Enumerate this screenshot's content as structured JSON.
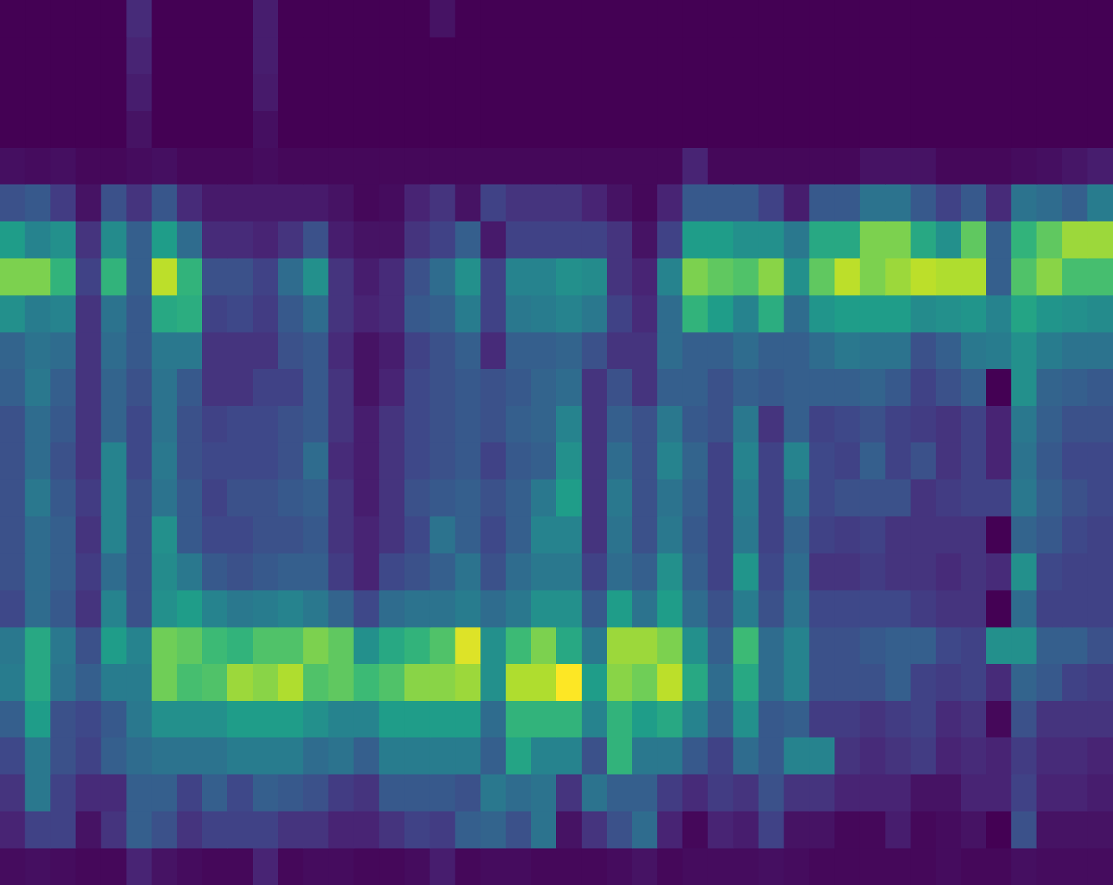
{
  "chart_data": {
    "type": "heatmap",
    "color": "viridis",
    "tick_labels": false,
    "grid": false,
    "color_range": [
      0,
      1
    ],
    "cells": [
      [
        0,
        0,
        0,
        0,
        0,
        0.12,
        0,
        0,
        0,
        0,
        0.08,
        0,
        0,
        0,
        0,
        0,
        0,
        0.05,
        0,
        0,
        0,
        0,
        0,
        0,
        0,
        0,
        0,
        0,
        0,
        0,
        0,
        0,
        0,
        0,
        0,
        0,
        0,
        0,
        0,
        0,
        0,
        0,
        0,
        0
      ],
      [
        0,
        0,
        0,
        0,
        0,
        0.1,
        0,
        0,
        0,
        0,
        0.08,
        0,
        0,
        0,
        0,
        0,
        0,
        0,
        0,
        0,
        0,
        0,
        0,
        0,
        0,
        0,
        0,
        0,
        0,
        0,
        0,
        0,
        0,
        0,
        0,
        0,
        0,
        0,
        0,
        0,
        0,
        0,
        0,
        0
      ],
      [
        0,
        0,
        0,
        0,
        0,
        0.08,
        0,
        0,
        0,
        0,
        0.07,
        0,
        0,
        0,
        0,
        0,
        0,
        0,
        0,
        0,
        0,
        0,
        0,
        0,
        0,
        0,
        0,
        0,
        0,
        0,
        0,
        0,
        0,
        0,
        0,
        0,
        0,
        0,
        0,
        0,
        0,
        0,
        0,
        0
      ],
      [
        0,
        0,
        0,
        0,
        0,
        0.05,
        0,
        0,
        0,
        0,
        0.04,
        0,
        0,
        0,
        0,
        0,
        0,
        0,
        0,
        0,
        0,
        0,
        0,
        0,
        0,
        0,
        0,
        0,
        0,
        0,
        0,
        0,
        0,
        0,
        0,
        0,
        0,
        0,
        0,
        0,
        0,
        0,
        0,
        0
      ],
      [
        0.04,
        0.03,
        0.04,
        0.02,
        0.02,
        0.03,
        0.04,
        0.02,
        0.02,
        0.02,
        0.03,
        0.02,
        0.02,
        0.02,
        0.02,
        0.02,
        0.02,
        0.02,
        0.02,
        0.02,
        0.02,
        0.02,
        0.02,
        0.02,
        0.02,
        0.02,
        0.02,
        0.1,
        0.02,
        0.02,
        0.02,
        0.02,
        0.02,
        0.02,
        0.05,
        0.05,
        0.05,
        0.02,
        0.02,
        0.02,
        0.03,
        0.04,
        0.06,
        0.08
      ],
      [
        0.25,
        0.28,
        0.18,
        0.05,
        0.25,
        0.15,
        0.27,
        0.12,
        0.07,
        0.07,
        0.07,
        0.07,
        0.07,
        0.05,
        0.02,
        0.03,
        0.1,
        0.15,
        0.05,
        0.2,
        0.15,
        0.15,
        0.15,
        0.1,
        0.05,
        0.02,
        0.1,
        0.28,
        0.28,
        0.28,
        0.2,
        0.08,
        0.28,
        0.28,
        0.38,
        0.38,
        0.28,
        0.2,
        0.28,
        0.12,
        0.38,
        0.35,
        0.3,
        0.42
      ],
      [
        0.55,
        0.45,
        0.5,
        0.15,
        0.48,
        0.3,
        0.55,
        0.35,
        0.12,
        0.12,
        0.1,
        0.15,
        0.25,
        0.08,
        0.05,
        0.05,
        0.15,
        0.2,
        0.3,
        0.07,
        0.2,
        0.2,
        0.2,
        0.2,
        0.15,
        0.05,
        0.2,
        0.55,
        0.55,
        0.5,
        0.5,
        0.4,
        0.6,
        0.6,
        0.8,
        0.8,
        0.6,
        0.5,
        0.75,
        0.3,
        0.65,
        0.75,
        0.85,
        0.85
      ],
      [
        0.8,
        0.8,
        0.65,
        0.2,
        0.65,
        0.3,
        0.9,
        0.65,
        0.25,
        0.25,
        0.2,
        0.35,
        0.5,
        0.15,
        0.08,
        0.12,
        0.25,
        0.35,
        0.5,
        0.2,
        0.45,
        0.45,
        0.5,
        0.48,
        0.15,
        0.1,
        0.45,
        0.8,
        0.75,
        0.72,
        0.82,
        0.5,
        0.75,
        0.9,
        0.8,
        0.85,
        0.9,
        0.88,
        0.88,
        0.3,
        0.72,
        0.82,
        0.7,
        0.7
      ],
      [
        0.5,
        0.42,
        0.45,
        0.15,
        0.38,
        0.28,
        0.6,
        0.62,
        0.2,
        0.22,
        0.18,
        0.28,
        0.35,
        0.15,
        0.1,
        0.12,
        0.28,
        0.3,
        0.42,
        0.2,
        0.4,
        0.42,
        0.45,
        0.4,
        0.2,
        0.12,
        0.35,
        0.65,
        0.55,
        0.45,
        0.62,
        0.35,
        0.52,
        0.55,
        0.55,
        0.55,
        0.48,
        0.5,
        0.52,
        0.45,
        0.58,
        0.52,
        0.5,
        0.48
      ],
      [
        0.32,
        0.38,
        0.35,
        0.15,
        0.35,
        0.28,
        0.4,
        0.4,
        0.15,
        0.15,
        0.15,
        0.25,
        0.28,
        0.12,
        0.05,
        0.08,
        0.2,
        0.25,
        0.3,
        0.12,
        0.3,
        0.3,
        0.32,
        0.25,
        0.15,
        0.15,
        0.35,
        0.3,
        0.3,
        0.35,
        0.3,
        0.3,
        0.35,
        0.4,
        0.38,
        0.38,
        0.25,
        0.3,
        0.4,
        0.42,
        0.5,
        0.42,
        0.38,
        0.38
      ],
      [
        0.3,
        0.4,
        0.3,
        0.15,
        0.32,
        0.25,
        0.38,
        0.28,
        0.15,
        0.15,
        0.2,
        0.2,
        0.28,
        0.15,
        0.05,
        0.1,
        0.22,
        0.25,
        0.28,
        0.25,
        0.28,
        0.32,
        0.35,
        0.15,
        0.25,
        0.15,
        0.3,
        0.3,
        0.25,
        0.3,
        0.28,
        0.3,
        0.3,
        0.3,
        0.32,
        0.28,
        0.2,
        0.25,
        0.3,
        0.0,
        0.5,
        0.32,
        0.3,
        0.28
      ],
      [
        0.25,
        0.35,
        0.28,
        0.15,
        0.32,
        0.22,
        0.38,
        0.25,
        0.2,
        0.22,
        0.22,
        0.25,
        0.28,
        0.15,
        0.08,
        0.15,
        0.22,
        0.25,
        0.28,
        0.25,
        0.3,
        0.32,
        0.45,
        0.15,
        0.3,
        0.25,
        0.4,
        0.28,
        0.25,
        0.4,
        0.15,
        0.3,
        0.2,
        0.22,
        0.25,
        0.2,
        0.18,
        0.15,
        0.2,
        0.1,
        0.4,
        0.3,
        0.25,
        0.25
      ],
      [
        0.25,
        0.35,
        0.25,
        0.15,
        0.45,
        0.22,
        0.4,
        0.25,
        0.22,
        0.22,
        0.22,
        0.25,
        0.35,
        0.12,
        0.08,
        0.15,
        0.22,
        0.25,
        0.28,
        0.2,
        0.28,
        0.3,
        0.5,
        0.15,
        0.35,
        0.25,
        0.45,
        0.32,
        0.2,
        0.45,
        0.2,
        0.45,
        0.22,
        0.2,
        0.3,
        0.2,
        0.25,
        0.15,
        0.2,
        0.1,
        0.38,
        0.28,
        0.22,
        0.22
      ],
      [
        0.25,
        0.4,
        0.28,
        0.18,
        0.45,
        0.25,
        0.38,
        0.28,
        0.2,
        0.25,
        0.25,
        0.28,
        0.3,
        0.15,
        0.08,
        0.15,
        0.25,
        0.28,
        0.3,
        0.25,
        0.3,
        0.4,
        0.55,
        0.15,
        0.4,
        0.25,
        0.38,
        0.3,
        0.2,
        0.42,
        0.2,
        0.38,
        0.22,
        0.25,
        0.25,
        0.25,
        0.15,
        0.18,
        0.2,
        0.2,
        0.4,
        0.3,
        0.25,
        0.22
      ],
      [
        0.25,
        0.35,
        0.3,
        0.15,
        0.45,
        0.25,
        0.5,
        0.28,
        0.22,
        0.22,
        0.25,
        0.25,
        0.28,
        0.15,
        0.1,
        0.15,
        0.22,
        0.38,
        0.3,
        0.22,
        0.3,
        0.45,
        0.45,
        0.15,
        0.38,
        0.25,
        0.4,
        0.28,
        0.2,
        0.4,
        0.2,
        0.32,
        0.2,
        0.18,
        0.2,
        0.15,
        0.15,
        0.15,
        0.15,
        0.0,
        0.32,
        0.28,
        0.22,
        0.2
      ],
      [
        0.25,
        0.35,
        0.3,
        0.18,
        0.35,
        0.25,
        0.48,
        0.4,
        0.28,
        0.25,
        0.28,
        0.3,
        0.3,
        0.18,
        0.1,
        0.22,
        0.25,
        0.3,
        0.38,
        0.25,
        0.35,
        0.4,
        0.4,
        0.2,
        0.35,
        0.3,
        0.5,
        0.3,
        0.2,
        0.52,
        0.22,
        0.35,
        0.15,
        0.15,
        0.18,
        0.15,
        0.15,
        0.12,
        0.15,
        0.12,
        0.5,
        0.22,
        0.2,
        0.2
      ],
      [
        0.22,
        0.35,
        0.28,
        0.15,
        0.45,
        0.25,
        0.5,
        0.55,
        0.45,
        0.4,
        0.42,
        0.45,
        0.4,
        0.32,
        0.22,
        0.35,
        0.38,
        0.38,
        0.42,
        0.35,
        0.4,
        0.5,
        0.5,
        0.28,
        0.55,
        0.38,
        0.55,
        0.35,
        0.25,
        0.42,
        0.25,
        0.38,
        0.22,
        0.22,
        0.22,
        0.22,
        0.18,
        0.15,
        0.15,
        0.0,
        0.35,
        0.2,
        0.2,
        0.2
      ],
      [
        0.4,
        0.6,
        0.4,
        0.25,
        0.55,
        0.45,
        0.78,
        0.75,
        0.68,
        0.65,
        0.72,
        0.72,
        0.8,
        0.75,
        0.5,
        0.6,
        0.65,
        0.72,
        0.95,
        0.5,
        0.68,
        0.8,
        0.6,
        0.4,
        0.85,
        0.85,
        0.8,
        0.5,
        0.3,
        0.68,
        0.35,
        0.45,
        0.25,
        0.25,
        0.28,
        0.3,
        0.3,
        0.22,
        0.2,
        0.5,
        0.5,
        0.3,
        0.3,
        0.25
      ],
      [
        0.42,
        0.6,
        0.38,
        0.3,
        0.42,
        0.42,
        0.78,
        0.7,
        0.72,
        0.85,
        0.82,
        0.88,
        0.72,
        0.75,
        0.68,
        0.72,
        0.82,
        0.82,
        0.85,
        0.5,
        0.88,
        0.88,
        1.0,
        0.55,
        0.82,
        0.78,
        0.9,
        0.6,
        0.35,
        0.6,
        0.35,
        0.45,
        0.25,
        0.25,
        0.25,
        0.3,
        0.2,
        0.18,
        0.2,
        0.12,
        0.32,
        0.28,
        0.2,
        0.18
      ],
      [
        0.3,
        0.55,
        0.25,
        0.22,
        0.28,
        0.4,
        0.5,
        0.5,
        0.5,
        0.55,
        0.55,
        0.55,
        0.5,
        0.45,
        0.45,
        0.55,
        0.55,
        0.55,
        0.55,
        0.35,
        0.65,
        0.65,
        0.65,
        0.45,
        0.65,
        0.55,
        0.6,
        0.45,
        0.3,
        0.5,
        0.28,
        0.3,
        0.18,
        0.18,
        0.15,
        0.18,
        0.2,
        0.12,
        0.15,
        0.02,
        0.25,
        0.15,
        0.15,
        0.15
      ],
      [
        0.22,
        0.4,
        0.25,
        0.2,
        0.3,
        0.35,
        0.38,
        0.38,
        0.38,
        0.42,
        0.42,
        0.42,
        0.35,
        0.38,
        0.3,
        0.42,
        0.42,
        0.42,
        0.42,
        0.3,
        0.58,
        0.45,
        0.45,
        0.25,
        0.65,
        0.4,
        0.4,
        0.28,
        0.2,
        0.35,
        0.28,
        0.45,
        0.45,
        0.15,
        0.12,
        0.15,
        0.18,
        0.1,
        0.12,
        0.1,
        0.18,
        0.12,
        0.12,
        0.1
      ],
      [
        0.15,
        0.4,
        0.2,
        0.12,
        0.12,
        0.3,
        0.3,
        0.2,
        0.3,
        0.22,
        0.3,
        0.28,
        0.25,
        0.18,
        0.15,
        0.28,
        0.28,
        0.28,
        0.25,
        0.4,
        0.35,
        0.38,
        0.15,
        0.38,
        0.3,
        0.3,
        0.18,
        0.12,
        0.18,
        0.15,
        0.25,
        0.15,
        0.15,
        0.1,
        0.1,
        0.1,
        0.05,
        0.05,
        0.1,
        0.1,
        0.2,
        0.1,
        0.1,
        0.08
      ],
      [
        0.1,
        0.2,
        0.2,
        0.05,
        0.15,
        0.3,
        0.25,
        0.15,
        0.2,
        0.2,
        0.2,
        0.15,
        0.15,
        0.1,
        0.1,
        0.15,
        0.2,
        0.18,
        0.3,
        0.32,
        0.25,
        0.38,
        0.05,
        0.15,
        0.25,
        0.35,
        0.1,
        0.02,
        0.1,
        0.08,
        0.2,
        0.05,
        0.05,
        0.02,
        0.02,
        0.08,
        0.02,
        0.03,
        0.05,
        0.0,
        0.25,
        0.05,
        0.05,
        0.05
      ],
      [
        0.03,
        0.04,
        0.03,
        0.02,
        0.02,
        0.1,
        0.05,
        0.03,
        0.02,
        0.02,
        0.1,
        0.02,
        0.03,
        0.03,
        0.02,
        0.02,
        0.03,
        0.08,
        0.02,
        0.03,
        0.03,
        0.02,
        0.02,
        0.02,
        0.03,
        0.05,
        0.02,
        0.03,
        0.03,
        0.03,
        0.04,
        0.03,
        0.02,
        0.02,
        0.02,
        0.02,
        0.02,
        0.03,
        0.02,
        0.02,
        0.04,
        0.03,
        0.03,
        0.03
      ]
    ]
  }
}
